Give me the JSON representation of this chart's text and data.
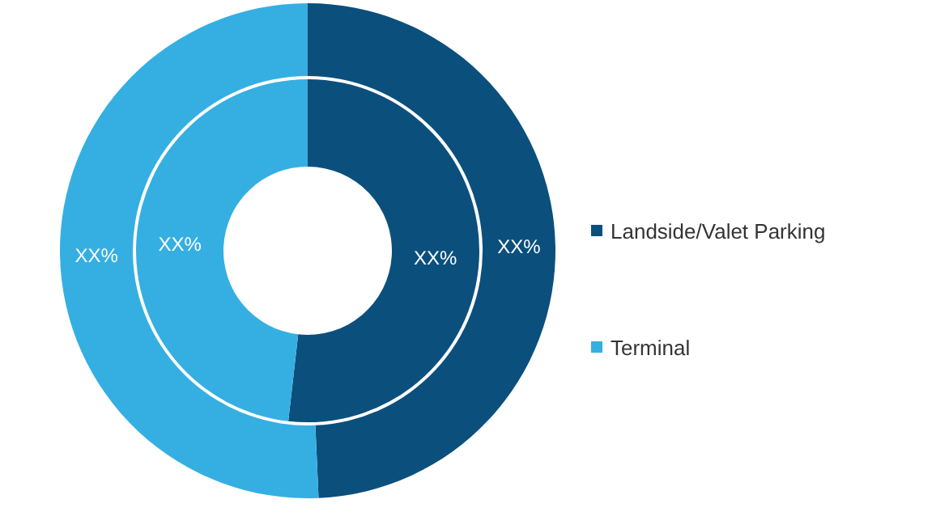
{
  "chart_data": {
    "type": "donut",
    "categories": [
      "Landside/Valet Parking",
      "Terminal"
    ],
    "colors": [
      "#0b4f7d",
      "#35afe2"
    ],
    "series": [
      {
        "values": [
          51.8,
          48.2
        ],
        "value_labels": [
          "XX%",
          "XX%"
        ]
      },
      {
        "values": [
          49.3,
          50.7
        ],
        "value_labels": [
          "XX%",
          "XX%"
        ]
      }
    ],
    "legend": "right"
  }
}
